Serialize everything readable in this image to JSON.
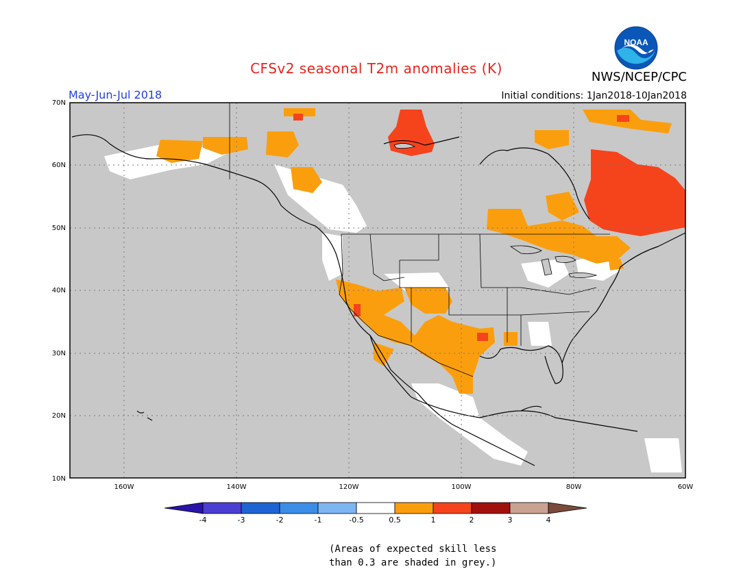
{
  "title": "CFSv2 seasonal T2m anomalies (K)",
  "agency": "NWS/NCEP/CPC",
  "logo_text": "NOAA",
  "season": "May-Jun-Jul 2018",
  "initial_conditions": "Initial conditions: 1Jan2018-10Jan2018",
  "lat_labels": [
    "70N",
    "60N",
    "50N",
    "40N",
    "30N",
    "20N",
    "10N"
  ],
  "lon_labels": [
    "160W",
    "140W",
    "120W",
    "100W",
    "80W",
    "60W"
  ],
  "colorbar": {
    "labels": [
      "-4",
      "-3",
      "-2",
      "-1",
      "-0.5",
      "0.5",
      "1",
      "2",
      "3",
      "4"
    ],
    "colors": [
      "#2a13a8",
      "#4a3ed3",
      "#1e64d4",
      "#3c8de8",
      "#7eb6f2",
      "#ffffff",
      "#fb9e0d",
      "#f5431c",
      "#a2100d",
      "#c9a292",
      "#7a4a3a"
    ]
  },
  "footnote": [
    "(Areas of expected skill less",
    "than 0.3 are shaded in grey.)"
  ]
}
